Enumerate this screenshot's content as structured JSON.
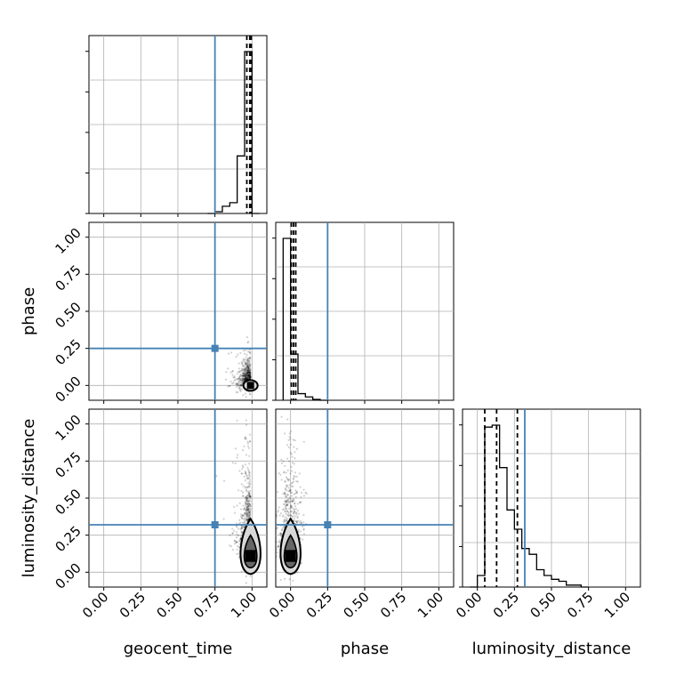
{
  "chart_data": {
    "type": "corner",
    "parameters": [
      "geocent_time",
      "phase",
      "luminosity_distance"
    ],
    "axis_labels": {
      "x": [
        "geocent_time",
        "phase",
        "luminosity_distance"
      ],
      "y": [
        "phase",
        "luminosity_distance"
      ]
    },
    "range": [
      -0.1,
      1.1
    ],
    "tick_values": [
      0.0,
      0.25,
      0.5,
      0.75,
      1.0
    ],
    "tick_labels": [
      "0.00",
      "0.25",
      "0.50",
      "0.75",
      "1.00"
    ],
    "truths": [
      0.75,
      0.25,
      0.32
    ],
    "grid": true,
    "histograms": [
      {
        "parameter": "geocent_time",
        "bin_edges": [
          0.7,
          0.75,
          0.8,
          0.85,
          0.9,
          0.95,
          1.0,
          1.05
        ],
        "counts": [
          0,
          0.01,
          0.04,
          0.06,
          0.32,
          0.9,
          0
        ],
        "quantiles": [
          0.965,
          0.985,
          0.995
        ]
      },
      {
        "parameter": "phase",
        "bin_edges": [
          -0.05,
          0.0,
          0.05,
          0.1,
          0.15,
          0.2,
          0.25
        ],
        "counts": [
          0.98,
          0.28,
          0.04,
          0.02,
          0.005,
          0
        ],
        "quantiles": [
          0.005,
          0.02,
          0.035
        ]
      },
      {
        "parameter": "luminosity_distance",
        "bin_edges": [
          -0.05,
          0.0,
          0.05,
          0.1,
          0.15,
          0.2,
          0.25,
          0.3,
          0.35,
          0.4,
          0.45,
          0.5,
          0.55,
          0.6,
          0.65,
          0.7,
          0.75
        ],
        "counts": [
          0,
          0.06,
          0.83,
          0.84,
          0.62,
          0.4,
          0.3,
          0.2,
          0.17,
          0.09,
          0.06,
          0.04,
          0.03,
          0.01,
          0.01,
          0
        ],
        "quantiles": [
          0.05,
          0.13,
          0.27
        ]
      }
    ],
    "density_panels": [
      {
        "x": "geocent_time",
        "y": "phase",
        "center": [
          0.99,
          0.0
        ],
        "spread_x": 0.05,
        "spread_y": 0.08
      },
      {
        "x": "geocent_time",
        "y": "luminosity_distance",
        "center": [
          0.99,
          0.15
        ],
        "spread_x": 0.05,
        "spread_y": 0.25
      },
      {
        "x": "phase",
        "y": "luminosity_distance",
        "center": [
          0.0,
          0.15
        ],
        "spread_x": 0.06,
        "spread_y": 0.25
      }
    ],
    "colors": {
      "truth": "#4682b4",
      "hist": "#000000",
      "grid": "#b0b0b0",
      "points": "#000000",
      "contour_fill_inner": "#666666",
      "contour_fill_outer": "#d8d8d8"
    }
  }
}
